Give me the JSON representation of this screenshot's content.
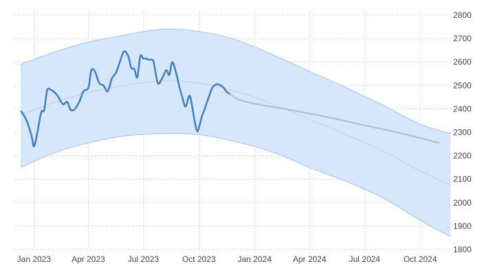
{
  "chart_data": {
    "type": "line",
    "title": "",
    "xlabel": "",
    "ylabel": "",
    "x_tick_labels": [
      "Jan 2023",
      "Apr 2023",
      "Jul 2023",
      "Oct 2023",
      "Jan 2024",
      "Apr 2024",
      "Jul 2024",
      "Oct 2024"
    ],
    "x_tick_dates": [
      "2023-01-01",
      "2023-04-01",
      "2023-07-01",
      "2023-10-01",
      "2024-01-01",
      "2024-04-01",
      "2024-07-01",
      "2024-10-01"
    ],
    "x_range": [
      "2022-12-10",
      "2024-11-20"
    ],
    "ylim": [
      1800,
      2800
    ],
    "y_ticks": [
      1800,
      1900,
      2000,
      2100,
      2200,
      2300,
      2400,
      2500,
      2600,
      2700,
      2800
    ],
    "y_axis_position": "right",
    "grid": true,
    "legend": "none",
    "colors": {
      "actual": "#3d7fc1",
      "forecast": "#b5c2d6",
      "band_fill": "#d6e6fb",
      "band_edge": "#9cc3ef",
      "trend": "#c8ccd6",
      "grid": "#bbbbbb"
    },
    "series": [
      {
        "role": "actual",
        "x": [
          "2022-12-11",
          "2022-12-20",
          "2022-12-28",
          "2023-01-01",
          "2023-01-06",
          "2023-01-13",
          "2023-01-18",
          "2023-01-23",
          "2023-01-30",
          "2023-02-08",
          "2023-02-18",
          "2023-02-25",
          "2023-03-03",
          "2023-03-10",
          "2023-03-17",
          "2023-03-24",
          "2023-04-01",
          "2023-04-06",
          "2023-04-12",
          "2023-04-19",
          "2023-04-26",
          "2023-05-03",
          "2023-05-10",
          "2023-05-17",
          "2023-05-23",
          "2023-05-30",
          "2023-06-06",
          "2023-06-11",
          "2023-06-16",
          "2023-06-21",
          "2023-06-26",
          "2023-07-01",
          "2023-07-06",
          "2023-07-09",
          "2023-07-13",
          "2023-07-18",
          "2023-07-25",
          "2023-08-01",
          "2023-08-08",
          "2023-08-13",
          "2023-08-18",
          "2023-08-25",
          "2023-08-30",
          "2023-09-04",
          "2023-09-09",
          "2023-09-16",
          "2023-09-23",
          "2023-09-28",
          "2023-10-02",
          "2023-10-06",
          "2023-10-10",
          "2023-10-13",
          "2023-10-18",
          "2023-10-23",
          "2023-10-30",
          "2023-11-06",
          "2023-11-11",
          "2023-11-15",
          "2023-11-20"
        ],
        "y": [
          2390,
          2350,
          2285,
          2240,
          2290,
          2385,
          2395,
          2480,
          2480,
          2460,
          2420,
          2430,
          2395,
          2400,
          2430,
          2475,
          2490,
          2565,
          2560,
          2510,
          2500,
          2475,
          2530,
          2555,
          2600,
          2645,
          2625,
          2575,
          2570,
          2535,
          2625,
          2615,
          2615,
          2610,
          2610,
          2600,
          2510,
          2530,
          2565,
          2545,
          2600,
          2545,
          2490,
          2445,
          2410,
          2455,
          2360,
          2305,
          2330,
          2370,
          2395,
          2420,
          2455,
          2490,
          2505,
          2500,
          2490,
          2475,
          2465
        ]
      },
      {
        "role": "forecast",
        "x": [
          "2023-11-20",
          "2023-12-05",
          "2023-12-20",
          "2024-01-05",
          "2024-03-01",
          "2024-05-01",
          "2024-07-01",
          "2024-09-01",
          "2024-11-01"
        ],
        "y": [
          2465,
          2440,
          2430,
          2420,
          2395,
          2365,
          2330,
          2295,
          2255
        ]
      },
      {
        "role": "trend_upper",
        "x": [
          "2022-12-10",
          "2023-02-01",
          "2023-04-01",
          "2023-06-01",
          "2023-08-01",
          "2023-10-01",
          "2023-12-01",
          "2024-02-01",
          "2024-04-01",
          "2024-06-01",
          "2024-08-01",
          "2024-10-01",
          "2024-11-20"
        ],
        "y": [
          2590,
          2640,
          2685,
          2715,
          2740,
          2730,
          2695,
          2630,
          2560,
          2490,
          2415,
          2335,
          2295
        ]
      },
      {
        "role": "trend_lower",
        "x": [
          "2022-12-10",
          "2023-02-01",
          "2023-04-01",
          "2023-06-01",
          "2023-08-01",
          "2023-10-01",
          "2023-12-01",
          "2024-02-01",
          "2024-04-01",
          "2024-06-01",
          "2024-08-01",
          "2024-10-01",
          "2024-11-20"
        ],
        "y": [
          2150,
          2210,
          2255,
          2285,
          2295,
          2290,
          2260,
          2215,
          2150,
          2090,
          2020,
          1925,
          1855
        ]
      },
      {
        "role": "trend_center",
        "x": [
          "2022-12-10",
          "2023-02-01",
          "2023-04-01",
          "2023-06-01",
          "2023-08-01",
          "2023-10-01",
          "2023-12-01",
          "2024-02-01",
          "2024-04-01",
          "2024-06-01",
          "2024-08-01",
          "2024-10-01",
          "2024-11-20"
        ],
        "y": [
          2375,
          2425,
          2470,
          2500,
          2520,
          2510,
          2475,
          2420,
          2355,
          2290,
          2220,
          2135,
          2075
        ]
      }
    ]
  }
}
